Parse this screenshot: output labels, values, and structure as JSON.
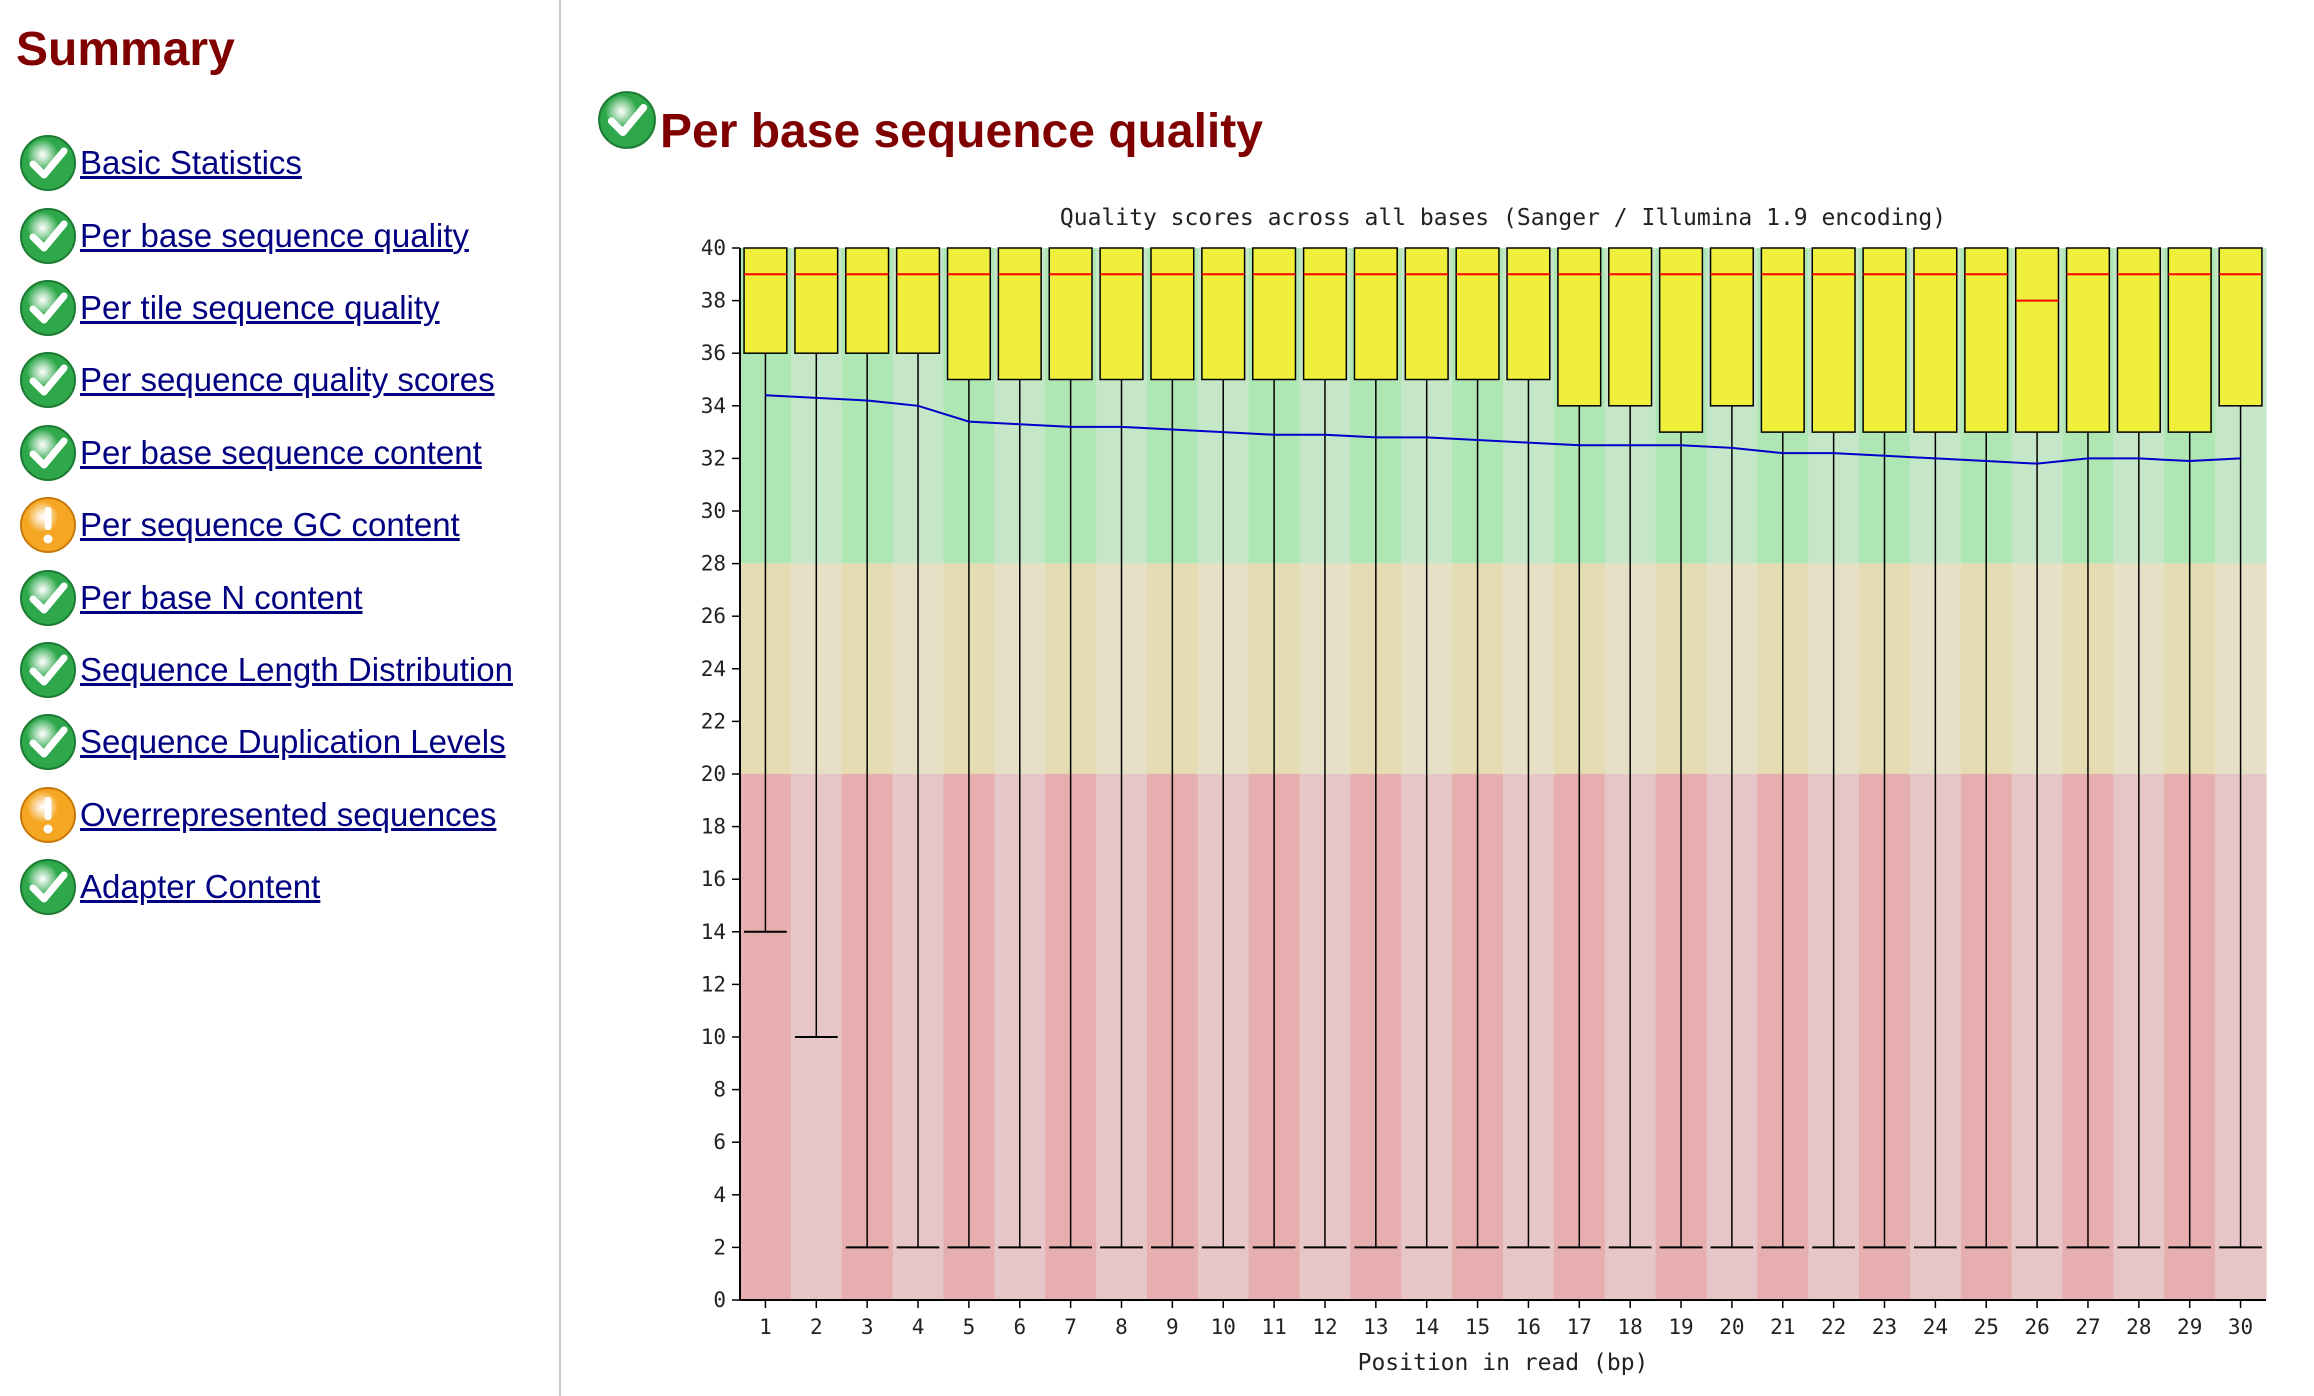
{
  "sidebar": {
    "title": "Summary",
    "modules": [
      {
        "label": "Basic Statistics",
        "status": "pass",
        "icon": "check-icon"
      },
      {
        "label": "Per base sequence quality",
        "status": "pass",
        "icon": "check-icon"
      },
      {
        "label": "Per tile sequence quality",
        "status": "pass",
        "icon": "check-icon"
      },
      {
        "label": "Per sequence quality scores",
        "status": "pass",
        "icon": "check-icon"
      },
      {
        "label": "Per base sequence content",
        "status": "pass",
        "icon": "check-icon"
      },
      {
        "label": "Per sequence GC content",
        "status": "warn",
        "icon": "warning-icon"
      },
      {
        "label": "Per base N content",
        "status": "pass",
        "icon": "check-icon"
      },
      {
        "label": "Sequence Length Distribution",
        "status": "pass",
        "icon": "check-icon"
      },
      {
        "label": "Sequence Duplication Levels",
        "status": "pass",
        "icon": "check-icon"
      },
      {
        "label": "Overrepresented sequences",
        "status": "warn",
        "icon": "warning-icon"
      },
      {
        "label": "Adapter Content",
        "status": "pass",
        "icon": "check-icon"
      }
    ]
  },
  "section": {
    "title": "Per base sequence quality",
    "status": "pass",
    "icon": "check-icon"
  },
  "colors": {
    "heading": "#800000",
    "link": "#000080",
    "pass_icon": "#2ea84a",
    "warn_icon": "#f5a623",
    "box_fill": "#f0f03c",
    "median_line": "#ff0000",
    "mean_line": "#0000cc",
    "band_good": [
      "#aee6b4",
      "#c6e6c8"
    ],
    "band_warn": [
      "#e6dcb4",
      "#e6e0c6"
    ],
    "band_bad": [
      "#e6aeae",
      "#e6c6c6"
    ]
  },
  "chart_data": {
    "type": "boxplot",
    "title": "Quality scores across all bases (Sanger / Illumina 1.9 encoding)",
    "xlabel": "Position in read (bp)",
    "ylabel": "",
    "ylim": [
      0,
      40
    ],
    "yticks": [
      0,
      2,
      4,
      6,
      8,
      10,
      12,
      14,
      16,
      18,
      20,
      22,
      24,
      26,
      28,
      30,
      32,
      34,
      36,
      38,
      40
    ],
    "categories": [
      "1",
      "2",
      "3",
      "4",
      "5",
      "6",
      "7",
      "8",
      "9",
      "10",
      "11",
      "12",
      "13",
      "14",
      "15",
      "16",
      "17",
      "18",
      "19",
      "20",
      "21",
      "22",
      "23",
      "24",
      "25",
      "26",
      "27",
      "28",
      "29",
      "30"
    ],
    "quality_bands": [
      {
        "name": "good",
        "from": 28,
        "to": 40
      },
      {
        "name": "reasonable",
        "from": 20,
        "to": 28
      },
      {
        "name": "poor",
        "from": 0,
        "to": 20
      }
    ],
    "series": [
      {
        "name": "Lower whisker (10th percentile)",
        "values": [
          14,
          10,
          2,
          2,
          2,
          2,
          2,
          2,
          2,
          2,
          2,
          2,
          2,
          2,
          2,
          2,
          2,
          2,
          2,
          2,
          2,
          2,
          2,
          2,
          2,
          2,
          2,
          2,
          2,
          2
        ]
      },
      {
        "name": "Lower quartile",
        "values": [
          36,
          36,
          36,
          36,
          35,
          35,
          35,
          35,
          35,
          35,
          35,
          35,
          35,
          35,
          35,
          35,
          34,
          34,
          33,
          34,
          33,
          33,
          33,
          33,
          33,
          33,
          33,
          33,
          33,
          34
        ]
      },
      {
        "name": "Median",
        "values": [
          39,
          39,
          39,
          39,
          39,
          39,
          39,
          39,
          39,
          39,
          39,
          39,
          39,
          39,
          39,
          39,
          39,
          39,
          39,
          39,
          39,
          39,
          39,
          39,
          39,
          38,
          39,
          39,
          39,
          39
        ]
      },
      {
        "name": "Upper quartile",
        "values": [
          40,
          40,
          40,
          40,
          40,
          40,
          40,
          40,
          40,
          40,
          40,
          40,
          40,
          40,
          40,
          40,
          40,
          40,
          40,
          40,
          40,
          40,
          40,
          40,
          40,
          40,
          40,
          40,
          40,
          40
        ]
      },
      {
        "name": "Upper whisker (90th percentile)",
        "values": [
          40,
          40,
          40,
          40,
          40,
          40,
          40,
          40,
          40,
          40,
          40,
          40,
          40,
          40,
          40,
          40,
          40,
          40,
          40,
          40,
          40,
          40,
          40,
          40,
          40,
          40,
          40,
          40,
          40,
          40
        ]
      },
      {
        "name": "Mean quality",
        "values": [
          34.4,
          34.3,
          34.2,
          34.0,
          33.4,
          33.3,
          33.2,
          33.2,
          33.1,
          33.0,
          32.9,
          32.9,
          32.8,
          32.8,
          32.7,
          32.6,
          32.5,
          32.5,
          32.5,
          32.4,
          32.2,
          32.2,
          32.1,
          32.0,
          31.9,
          31.8,
          32.0,
          32.0,
          31.9,
          32.0
        ]
      }
    ]
  }
}
